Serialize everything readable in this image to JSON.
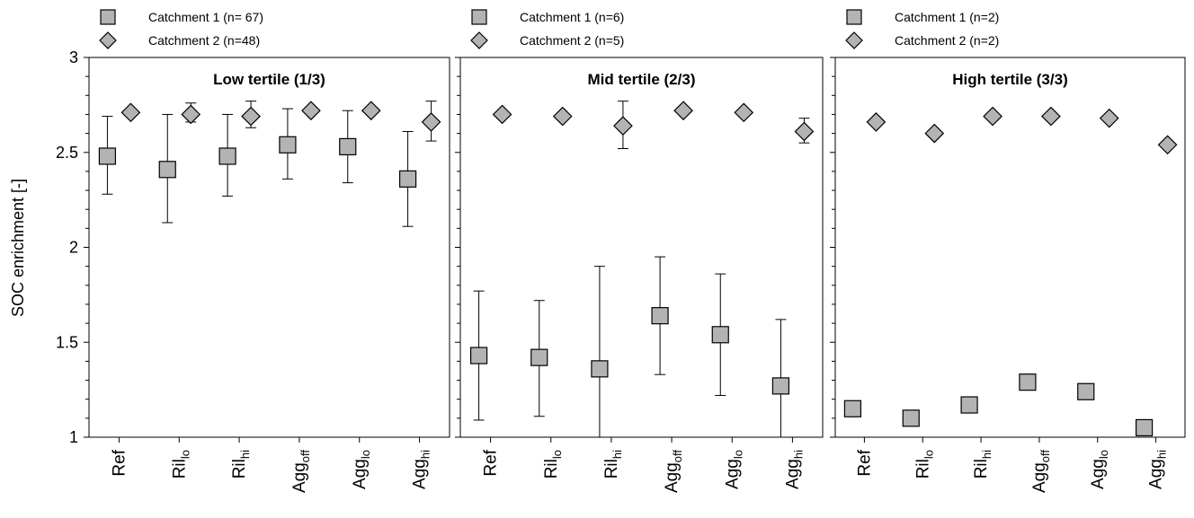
{
  "chart_data": {
    "type": "scatter",
    "ylabel": "SOC enrichment  [-]",
    "ylim": [
      1,
      3
    ],
    "yticks": [
      1,
      1.5,
      2,
      2.5,
      3
    ],
    "ytick_labels": [
      "1",
      "1.5",
      "2",
      "2.5",
      "3"
    ],
    "categories": [
      {
        "base": "Ref",
        "sub": ""
      },
      {
        "base": "Ril",
        "sub": "lo"
      },
      {
        "base": "Ril",
        "sub": "hi"
      },
      {
        "base": "Agg",
        "sub": "off"
      },
      {
        "base": "Agg",
        "sub": "lo"
      },
      {
        "base": "Agg",
        "sub": "hi"
      }
    ],
    "panels": [
      {
        "title": "Low  tertile  (1/3)",
        "legend": [
          "Catchment   1 (n= 67)",
          "Catchment   2 (n=48)"
        ],
        "series": [
          {
            "marker": "square",
            "values": [
              2.48,
              2.41,
              2.48,
              2.54,
              2.53,
              2.36
            ],
            "err_low": [
              2.28,
              2.13,
              2.27,
              2.36,
              2.34,
              2.11
            ],
            "err_high": [
              2.69,
              2.7,
              2.7,
              2.73,
              2.72,
              2.61
            ]
          },
          {
            "marker": "diamond",
            "values": [
              2.71,
              2.7,
              2.69,
              2.72,
              2.72,
              2.66
            ],
            "err_low": [
              null,
              2.66,
              2.63,
              null,
              null,
              2.56
            ],
            "err_high": [
              null,
              2.76,
              2.77,
              null,
              null,
              2.77
            ]
          }
        ]
      },
      {
        "title": "Mid  tertile  (2/3)",
        "legend": [
          "Catchment   1 (n=6)",
          "Catchment   2 (n=5)"
        ],
        "series": [
          {
            "marker": "square",
            "values": [
              1.43,
              1.42,
              1.36,
              1.64,
              1.54,
              1.27
            ],
            "err_low": [
              1.09,
              1.11,
              1.0,
              1.33,
              1.22,
              1.0
            ],
            "err_high": [
              1.77,
              1.72,
              1.9,
              1.95,
              1.86,
              1.62
            ]
          },
          {
            "marker": "diamond",
            "values": [
              2.7,
              2.69,
              2.64,
              2.72,
              2.71,
              2.61
            ],
            "err_low": [
              null,
              null,
              2.52,
              null,
              null,
              2.55
            ],
            "err_high": [
              null,
              null,
              2.77,
              null,
              null,
              2.68
            ]
          }
        ]
      },
      {
        "title": "High  tertile  (3/3)",
        "legend": [
          "Catchment   1 (n=2)",
          "Catchment   2 (n=2)"
        ],
        "series": [
          {
            "marker": "square",
            "values": [
              1.15,
              1.1,
              1.17,
              1.29,
              1.24,
              1.05
            ],
            "err_low": [
              null,
              null,
              null,
              null,
              null,
              null
            ],
            "err_high": [
              null,
              null,
              null,
              null,
              null,
              null
            ]
          },
          {
            "marker": "diamond",
            "values": [
              2.66,
              2.6,
              2.69,
              2.69,
              2.68,
              2.54
            ],
            "err_low": [
              null,
              null,
              null,
              null,
              null,
              null
            ],
            "err_high": [
              null,
              null,
              null,
              null,
              null,
              null
            ]
          }
        ]
      }
    ]
  },
  "colors": {
    "marker_fill": "#b3b3b3",
    "marker_stroke": "#000000",
    "axis": "#000000"
  }
}
